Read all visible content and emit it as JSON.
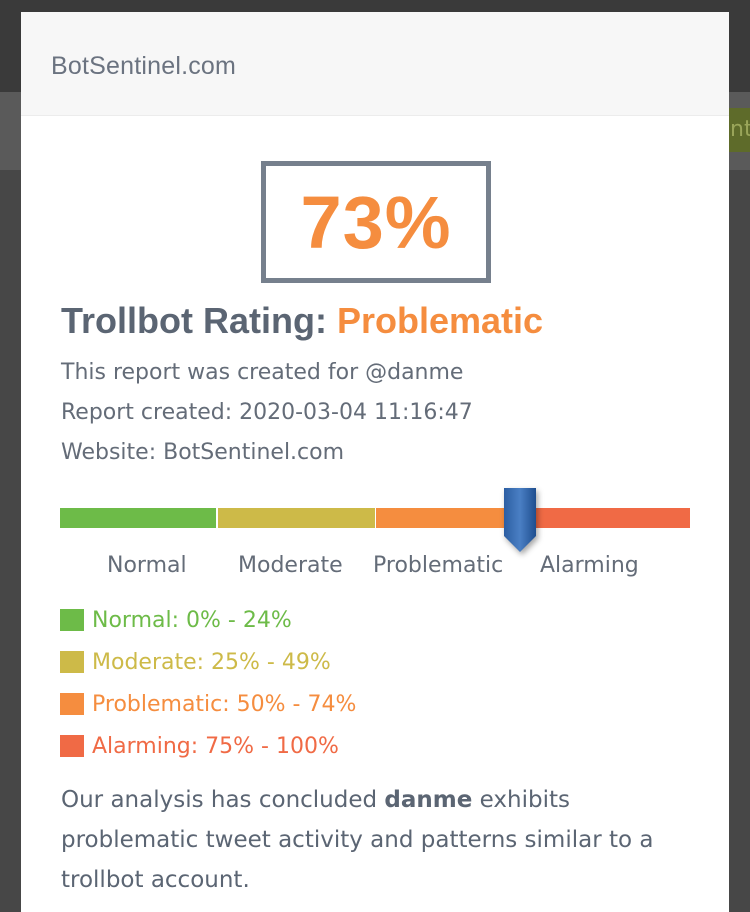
{
  "background": {
    "partial_button_text": "nt"
  },
  "header": {
    "site_name": "BotSentinel.com"
  },
  "score": {
    "value": "73%",
    "color": "#f58d3f"
  },
  "rating": {
    "label": "Trollbot Rating:",
    "value": "Problematic"
  },
  "report": {
    "created_for": "This report was created for @danme",
    "created_at": "Report created: 2020-03-04 11:16:47",
    "website": "Website: BotSentinel.com"
  },
  "scale": {
    "marker_percent": 73,
    "segments": [
      {
        "label": "Normal",
        "color": "#6dbb48"
      },
      {
        "label": "Moderate",
        "color": "#cdba48"
      },
      {
        "label": "Problematic",
        "color": "#f58d3f"
      },
      {
        "label": "Alarming",
        "color": "#f06a45"
      }
    ]
  },
  "legend": [
    {
      "text": "Normal: 0% - 24%",
      "color": "#6dbb48"
    },
    {
      "text": "Moderate: 25% - 49%",
      "color": "#cdba48"
    },
    {
      "text": "Problematic: 50% - 74%",
      "color": "#f58d3f"
    },
    {
      "text": "Alarming: 75% - 100%",
      "color": "#f06a45"
    }
  ],
  "conclusion": {
    "before": "Our analysis has concluded ",
    "username": "danme",
    "after": " exhibits problematic tweet activity and patterns similar to a trollbot account."
  }
}
